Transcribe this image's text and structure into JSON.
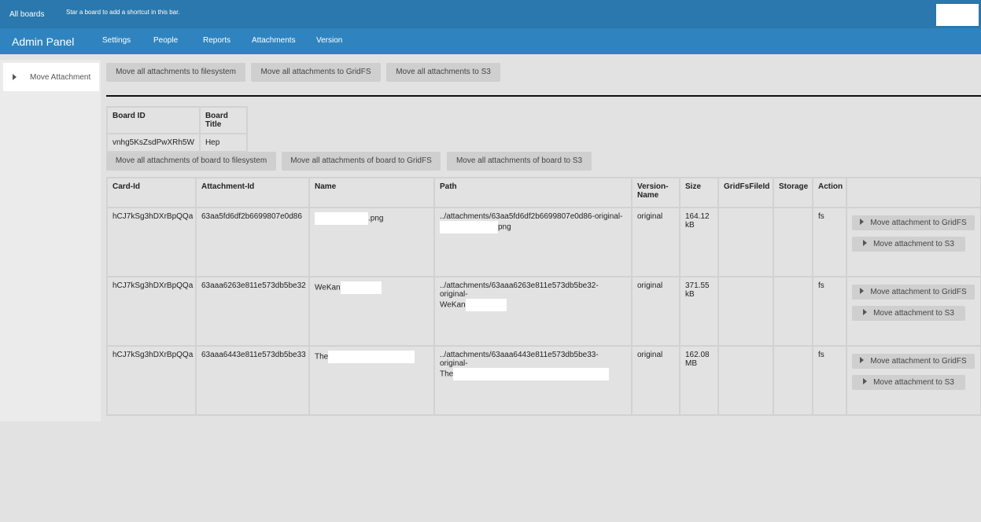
{
  "header": {
    "all_boards": "All boards",
    "star_hint": "Star a board to add a shortcut in this bar."
  },
  "nav": {
    "title": "Admin Panel",
    "items": [
      "Settings",
      "People",
      "Reports",
      "Attachments",
      "Version"
    ]
  },
  "sidebar": {
    "items": [
      "Move Attachment"
    ]
  },
  "global_buttons": [
    "Move all attachments to filesystem",
    "Move all attachments to GridFS",
    "Move all attachments to S3"
  ],
  "board_table": {
    "headers": [
      "Board ID",
      "Board Title"
    ],
    "rows": [
      [
        "vnhg5KsZsdPwXRh5W",
        "Hep"
      ]
    ]
  },
  "board_buttons": [
    "Move all attachments of board to filesystem",
    "Move all attachments of board to GridFS",
    "Move all attachments of board to S3"
  ],
  "attachments_table": {
    "headers": [
      "Card-Id",
      "Attachment-Id",
      "Name",
      "Path",
      "Version-Name",
      "Size",
      "GridFsFileId",
      "Storage",
      "Action"
    ],
    "rows": [
      {
        "card_id": "hCJ7kSg3hDXrBpQQa",
        "attachment_id": "63aa5fd6df2b6699807e0d86",
        "name": ".png",
        "path": [
          "../attachments/63aa5fd6df2b6699807e0d86-original-",
          "png"
        ],
        "version": "original",
        "size": "164.12 kB",
        "action": "fs"
      },
      {
        "card_id": "hCJ7kSg3hDXrBpQQa",
        "attachment_id": "63aaa6263e811e573db5be32",
        "name": "WeKan",
        "path": [
          "../attachments/63aaa6263e811e573db5be32-original-",
          "WeKan"
        ],
        "version": "original",
        "size": "371.55 kB",
        "action": "fs"
      },
      {
        "card_id": "hCJ7kSg3hDXrBpQQa",
        "attachment_id": "63aaa6443e811e573db5be33",
        "name": "The",
        "path": [
          "../attachments/63aaa6443e811e573db5be33-original-",
          "The"
        ],
        "version": "original",
        "size": "162.08 MB",
        "action": "fs"
      }
    ],
    "row_buttons": [
      "Move attachment to GridFS",
      "Move attachment to S3"
    ]
  }
}
